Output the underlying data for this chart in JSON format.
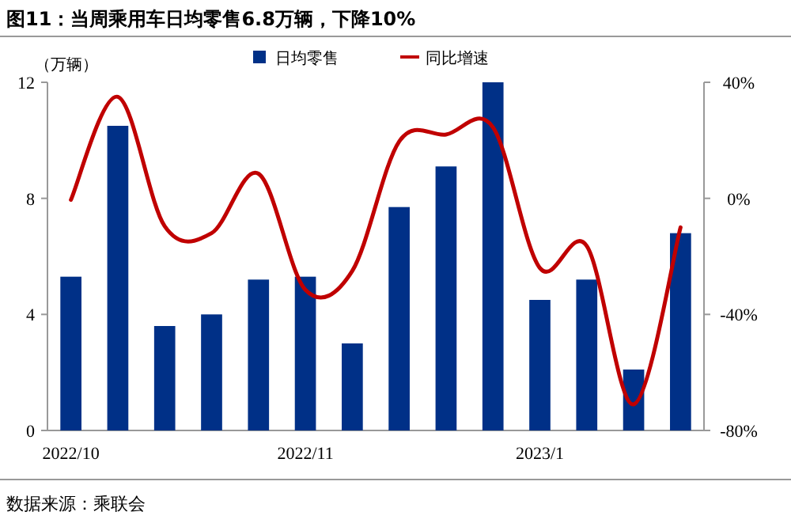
{
  "chart_data": {
    "type": "bar",
    "title": "图11：当周乘用车日均零售6.8万辆，下降10%",
    "ylabel": "（万辆）",
    "annotations": [
      "数据来源：乘联会"
    ],
    "categories": [
      "2022/10",
      null,
      null,
      null,
      null,
      "2022/11",
      null,
      null,
      null,
      null,
      "2023/1",
      null,
      null,
      null
    ],
    "series": [
      {
        "name": "日均零售",
        "type": "bar",
        "color": "#003087",
        "values": [
          5.3,
          10.5,
          3.6,
          4.0,
          5.2,
          5.3,
          3.0,
          7.7,
          9.1,
          12.0,
          4.5,
          5.2,
          2.1,
          6.8
        ]
      },
      {
        "name": "同比增速",
        "type": "line",
        "axis": "y2",
        "color": "#c00000",
        "values": [
          -0.5,
          35,
          -9.6,
          -12,
          8.5,
          -31.5,
          -25,
          19.6,
          22,
          24.5,
          -24,
          -16.4,
          -71,
          -10
        ]
      }
    ],
    "ylim": [
      0,
      12
    ],
    "yticks": [
      0,
      4,
      8,
      12
    ],
    "y2lim": [
      -80,
      40
    ],
    "y2ticks": [
      {
        "value": -80,
        "label": "-80%"
      },
      {
        "value": -40,
        "label": "-40%"
      },
      {
        "value": 0,
        "label": "0%"
      },
      {
        "value": 40,
        "label": "40%"
      }
    ],
    "grid": false,
    "legend": "top",
    "marker": "none",
    "line_style": "solid"
  }
}
